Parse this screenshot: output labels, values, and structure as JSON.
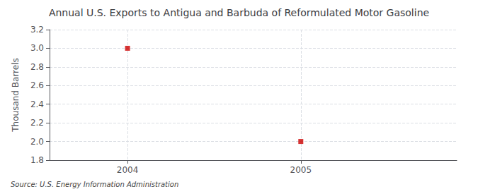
{
  "chart_data": {
    "type": "scatter",
    "title": "Annual U.S. Exports to Antigua and Barbuda of Reformulated Motor Gasoline",
    "ylabel": "Thousand Barrels",
    "annotations": [
      "Source: U.S. Energy Information Administration"
    ],
    "x": [
      2004,
      2005
    ],
    "values": [
      3.0,
      2.0
    ],
    "color": "#cc0000",
    "marker": "square",
    "xlim": [
      2003.55,
      2005.9
    ],
    "xticks": [
      2004,
      2005
    ],
    "ylim": [
      1.8,
      3.2
    ],
    "yticks": [
      1.8,
      {
        "value": 2.0,
        "label": "2.0"
      },
      2.2,
      2.4,
      2.6,
      2.8,
      {
        "value": 3.0,
        "label": "3.0"
      },
      3.2
    ],
    "grid": true
  }
}
